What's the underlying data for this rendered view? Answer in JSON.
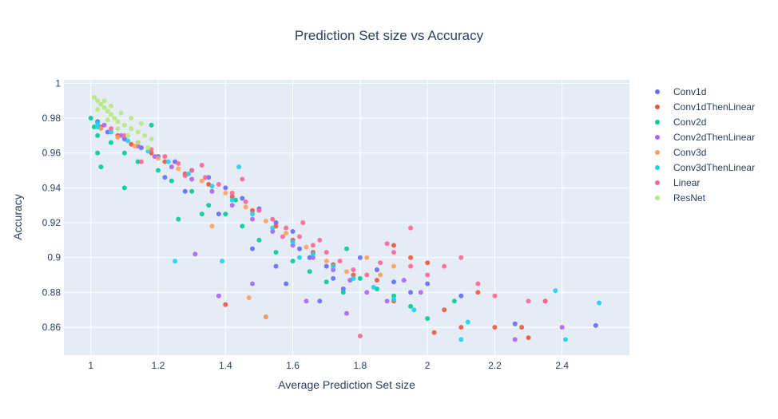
{
  "chart_data": {
    "type": "scatter",
    "title": "Prediction Set size vs Accuracy",
    "xlabel": "Average Prediction Set size",
    "ylabel": "Accuracy",
    "xlim": [
      0.92,
      2.6
    ],
    "ylim": [
      0.844,
      1.002
    ],
    "xticks": [
      1,
      1.2,
      1.4,
      1.6,
      1.8,
      2,
      2.2,
      2.4
    ],
    "xtick_labels": [
      "1",
      "1.2",
      "1.4",
      "1.6",
      "1.8",
      "2",
      "2.2",
      "2.4"
    ],
    "yticks": [
      0.86,
      0.88,
      0.9,
      0.92,
      0.94,
      0.96,
      0.98,
      1
    ],
    "ytick_labels": [
      "0.86",
      "0.88",
      "0.9",
      "0.92",
      "0.94",
      "0.96",
      "0.98",
      "1"
    ],
    "grid": true,
    "legend_position": "right",
    "plot_background": "#e5ecf6",
    "series": [
      {
        "name": "Conv1d",
        "color": "#636efa",
        "points": [
          [
            1.02,
            0.978
          ],
          [
            1.05,
            0.972
          ],
          [
            1.1,
            0.968
          ],
          [
            1.15,
            0.963
          ],
          [
            1.2,
            0.958
          ],
          [
            1.25,
            0.955
          ],
          [
            1.3,
            0.95
          ],
          [
            1.35,
            0.946
          ],
          [
            1.4,
            0.94
          ],
          [
            1.45,
            0.934
          ],
          [
            1.5,
            0.928
          ],
          [
            1.55,
            0.92
          ],
          [
            1.6,
            0.915
          ],
          [
            1.62,
            0.905
          ],
          [
            1.65,
            0.9
          ],
          [
            1.7,
            0.895
          ],
          [
            1.72,
            0.888
          ],
          [
            1.75,
            0.882
          ],
          [
            1.8,
            0.9
          ],
          [
            1.85,
            0.893
          ],
          [
            1.9,
            0.886
          ],
          [
            1.95,
            0.88
          ],
          [
            2.0,
            0.885
          ],
          [
            2.1,
            0.878
          ],
          [
            1.68,
            0.875
          ],
          [
            1.55,
            0.895
          ],
          [
            1.48,
            0.905
          ],
          [
            1.38,
            0.925
          ],
          [
            1.28,
            0.938
          ],
          [
            1.22,
            0.946
          ],
          [
            1.58,
            0.885
          ],
          [
            2.26,
            0.862
          ],
          [
            2.5,
            0.861
          ]
        ]
      },
      {
        "name": "Conv1dThenLinear",
        "color": "#ef553b",
        "points": [
          [
            1.03,
            0.975
          ],
          [
            1.08,
            0.97
          ],
          [
            1.12,
            0.965
          ],
          [
            1.18,
            0.96
          ],
          [
            1.22,
            0.955
          ],
          [
            1.28,
            0.948
          ],
          [
            1.35,
            0.942
          ],
          [
            1.42,
            0.935
          ],
          [
            1.48,
            0.927
          ],
          [
            1.55,
            0.918
          ],
          [
            1.6,
            0.91
          ],
          [
            1.66,
            0.903
          ],
          [
            1.72,
            0.896
          ],
          [
            1.78,
            0.89
          ],
          [
            1.85,
            0.887
          ],
          [
            1.9,
            0.875
          ],
          [
            1.95,
            0.9
          ],
          [
            2.0,
            0.897
          ],
          [
            2.05,
            0.87
          ],
          [
            2.1,
            0.86
          ],
          [
            2.15,
            0.88
          ],
          [
            2.2,
            0.86
          ],
          [
            2.28,
            0.86
          ],
          [
            2.3,
            0.854
          ],
          [
            1.4,
            0.873
          ],
          [
            1.52,
            0.866
          ],
          [
            1.9,
            0.907
          ],
          [
            2.35,
            0.875
          ],
          [
            2.02,
            0.857
          ]
        ]
      },
      {
        "name": "Conv2d",
        "color": "#00cc96",
        "points": [
          [
            1.0,
            0.98
          ],
          [
            1.01,
            0.975
          ],
          [
            1.02,
            0.97
          ],
          [
            1.02,
            0.96
          ],
          [
            1.03,
            0.952
          ],
          [
            1.06,
            0.966
          ],
          [
            1.1,
            0.96
          ],
          [
            1.14,
            0.955
          ],
          [
            1.2,
            0.95
          ],
          [
            1.24,
            0.944
          ],
          [
            1.3,
            0.938
          ],
          [
            1.35,
            0.93
          ],
          [
            1.4,
            0.925
          ],
          [
            1.45,
            0.918
          ],
          [
            1.5,
            0.91
          ],
          [
            1.55,
            0.903
          ],
          [
            1.6,
            0.898
          ],
          [
            1.65,
            0.892
          ],
          [
            1.7,
            0.886
          ],
          [
            1.75,
            0.88
          ],
          [
            1.8,
            0.888
          ],
          [
            1.85,
            0.882
          ],
          [
            1.9,
            0.878
          ],
          [
            1.95,
            0.872
          ],
          [
            2.0,
            0.865
          ],
          [
            2.08,
            0.875
          ],
          [
            1.43,
            0.933
          ],
          [
            1.33,
            0.925
          ],
          [
            1.26,
            0.922
          ],
          [
            1.1,
            0.94
          ],
          [
            1.18,
            0.976
          ],
          [
            1.76,
            0.905
          ]
        ]
      },
      {
        "name": "Conv2dThenLinear",
        "color": "#ab63fa",
        "points": [
          [
            1.04,
            0.976
          ],
          [
            1.09,
            0.97
          ],
          [
            1.14,
            0.964
          ],
          [
            1.19,
            0.958
          ],
          [
            1.24,
            0.952
          ],
          [
            1.3,
            0.945
          ],
          [
            1.36,
            0.938
          ],
          [
            1.42,
            0.93
          ],
          [
            1.48,
            0.922
          ],
          [
            1.54,
            0.915
          ],
          [
            1.6,
            0.907
          ],
          [
            1.66,
            0.9
          ],
          [
            1.72,
            0.893
          ],
          [
            1.77,
            0.887
          ],
          [
            1.82,
            0.88
          ],
          [
            1.88,
            0.875
          ],
          [
            1.93,
            0.887
          ],
          [
            1.98,
            0.88
          ],
          [
            1.76,
            0.868
          ],
          [
            1.48,
            0.885
          ],
          [
            1.38,
            0.878
          ],
          [
            1.31,
            0.902
          ],
          [
            2.26,
            0.853
          ],
          [
            2.4,
            0.86
          ],
          [
            1.64,
            0.875
          ]
        ]
      },
      {
        "name": "Conv3d",
        "color": "#ffa15a",
        "points": [
          [
            1.03,
            0.974
          ],
          [
            1.08,
            0.969
          ],
          [
            1.13,
            0.964
          ],
          [
            1.2,
            0.957
          ],
          [
            1.26,
            0.951
          ],
          [
            1.33,
            0.944
          ],
          [
            1.4,
            0.937
          ],
          [
            1.46,
            0.929
          ],
          [
            1.52,
            0.921
          ],
          [
            1.58,
            0.914
          ],
          [
            1.64,
            0.906
          ],
          [
            1.7,
            0.898
          ],
          [
            1.76,
            0.892
          ],
          [
            1.82,
            0.9
          ],
          [
            1.86,
            0.89
          ],
          [
            1.36,
            0.918
          ],
          [
            1.47,
            0.877
          ],
          [
            1.52,
            0.866
          ],
          [
            1.9,
            0.895
          ]
        ]
      },
      {
        "name": "Conv3dThenLinear",
        "color": "#19d3f3",
        "points": [
          [
            1.02,
            0.977
          ],
          [
            1.06,
            0.972
          ],
          [
            1.11,
            0.967
          ],
          [
            1.17,
            0.961
          ],
          [
            1.23,
            0.955
          ],
          [
            1.29,
            0.948
          ],
          [
            1.36,
            0.941
          ],
          [
            1.42,
            0.933
          ],
          [
            1.48,
            0.925
          ],
          [
            1.54,
            0.917
          ],
          [
            1.6,
            0.909
          ],
          [
            1.66,
            0.902
          ],
          [
            1.72,
            0.895
          ],
          [
            1.78,
            0.888
          ],
          [
            1.84,
            0.883
          ],
          [
            1.9,
            0.876
          ],
          [
            1.96,
            0.87
          ],
          [
            1.02,
            0.975
          ],
          [
            1.25,
            0.898
          ],
          [
            1.39,
            0.898
          ],
          [
            1.44,
            0.952
          ],
          [
            2.1,
            0.853
          ],
          [
            2.12,
            0.863
          ],
          [
            2.38,
            0.881
          ],
          [
            2.41,
            0.853
          ],
          [
            2.51,
            0.874
          ],
          [
            1.62,
            0.9
          ]
        ]
      },
      {
        "name": "Linear",
        "color": "#ff6692",
        "points": [
          [
            1.06,
            0.974
          ],
          [
            1.1,
            0.97
          ],
          [
            1.14,
            0.966
          ],
          [
            1.18,
            0.962
          ],
          [
            1.22,
            0.958
          ],
          [
            1.26,
            0.954
          ],
          [
            1.3,
            0.95
          ],
          [
            1.34,
            0.946
          ],
          [
            1.38,
            0.942
          ],
          [
            1.42,
            0.937
          ],
          [
            1.46,
            0.932
          ],
          [
            1.5,
            0.927
          ],
          [
            1.54,
            0.922
          ],
          [
            1.58,
            0.917
          ],
          [
            1.62,
            0.912
          ],
          [
            1.66,
            0.907
          ],
          [
            1.7,
            0.903
          ],
          [
            1.74,
            0.898
          ],
          [
            1.78,
            0.893
          ],
          [
            1.82,
            0.89
          ],
          [
            1.86,
            0.897
          ],
          [
            1.9,
            0.903
          ],
          [
            1.95,
            0.895
          ],
          [
            2.0,
            0.89
          ],
          [
            2.05,
            0.895
          ],
          [
            2.1,
            0.9
          ],
          [
            2.15,
            0.885
          ],
          [
            2.2,
            0.878
          ],
          [
            2.3,
            0.875
          ],
          [
            2.35,
            0.875
          ],
          [
            1.15,
            0.955
          ],
          [
            1.28,
            0.947
          ],
          [
            1.33,
            0.953
          ],
          [
            1.45,
            0.945
          ],
          [
            1.57,
            0.912
          ],
          [
            1.63,
            0.92
          ],
          [
            1.68,
            0.91
          ],
          [
            1.88,
            0.908
          ],
          [
            1.95,
            0.917
          ],
          [
            1.8,
            0.855
          ]
        ]
      },
      {
        "name": "ResNet",
        "color": "#b6e880",
        "points": [
          [
            1.01,
            0.992
          ],
          [
            1.02,
            0.99
          ],
          [
            1.03,
            0.988
          ],
          [
            1.04,
            0.986
          ],
          [
            1.05,
            0.984
          ],
          [
            1.06,
            0.982
          ],
          [
            1.07,
            0.98
          ],
          [
            1.08,
            0.978
          ],
          [
            1.1,
            0.976
          ],
          [
            1.12,
            0.974
          ],
          [
            1.14,
            0.972
          ],
          [
            1.16,
            0.97
          ],
          [
            1.18,
            0.968
          ],
          [
            1.04,
            0.99
          ],
          [
            1.06,
            0.987
          ],
          [
            1.09,
            0.983
          ],
          [
            1.12,
            0.98
          ],
          [
            1.15,
            0.977
          ],
          [
            1.02,
            0.985
          ],
          [
            1.05,
            0.979
          ],
          [
            1.08,
            0.974
          ],
          [
            1.11,
            0.97
          ],
          [
            1.14,
            0.966
          ],
          [
            1.17,
            0.963
          ]
        ]
      }
    ]
  }
}
